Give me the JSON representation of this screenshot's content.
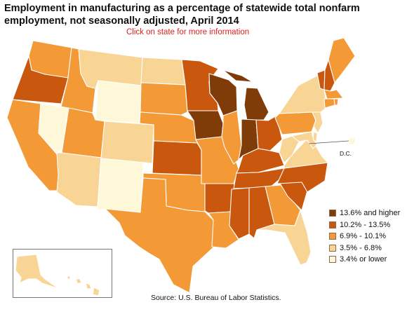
{
  "title": "Employment in manufacturing as a percentage of statewide total nonfarm\nemployment, not seasonally adjusted, April 2014",
  "subtitle": "Click on state for more information",
  "source": "Source:  U.S. Bureau of Labor Statistics.",
  "dc_label": "D.C.",
  "legend": [
    {
      "label": "13.6% and higher",
      "color": "#7f3b08"
    },
    {
      "label": "10.2% - 13.5%",
      "color": "#c9570e"
    },
    {
      "label": "6.9% - 10.1%",
      "color": "#f39935"
    },
    {
      "label": "3.5% - 6.8%",
      "color": "#f9d595"
    },
    {
      "label": "3.4% or lower",
      "color": "#fef8d8"
    }
  ],
  "states": [
    {
      "id": "WA",
      "class": 2
    },
    {
      "id": "OR",
      "class": 1
    },
    {
      "id": "CA",
      "class": 2
    },
    {
      "id": "NV",
      "class": 4
    },
    {
      "id": "ID",
      "class": 2
    },
    {
      "id": "MT",
      "class": 3
    },
    {
      "id": "WY",
      "class": 4
    },
    {
      "id": "UT",
      "class": 2
    },
    {
      "id": "AZ",
      "class": 3
    },
    {
      "id": "CO",
      "class": 3
    },
    {
      "id": "NM",
      "class": 4
    },
    {
      "id": "ND",
      "class": 3
    },
    {
      "id": "SD",
      "class": 2
    },
    {
      "id": "NE",
      "class": 2
    },
    {
      "id": "KS",
      "class": 1
    },
    {
      "id": "OK",
      "class": 2
    },
    {
      "id": "TX",
      "class": 2
    },
    {
      "id": "MN",
      "class": 1
    },
    {
      "id": "IA",
      "class": 0
    },
    {
      "id": "MO",
      "class": 2
    },
    {
      "id": "AR",
      "class": 1
    },
    {
      "id": "LA",
      "class": 2
    },
    {
      "id": "WI",
      "class": 0
    },
    {
      "id": "IL",
      "class": 2
    },
    {
      "id": "MI",
      "class": 0
    },
    {
      "id": "IN",
      "class": 0
    },
    {
      "id": "OH",
      "class": 1
    },
    {
      "id": "KY",
      "class": 1
    },
    {
      "id": "TN",
      "class": 1
    },
    {
      "id": "MS",
      "class": 1
    },
    {
      "id": "AL",
      "class": 1
    },
    {
      "id": "GA",
      "class": 2
    },
    {
      "id": "FL",
      "class": 3
    },
    {
      "id": "SC",
      "class": 1
    },
    {
      "id": "NC",
      "class": 1
    },
    {
      "id": "VA",
      "class": 3
    },
    {
      "id": "WV",
      "class": 3
    },
    {
      "id": "PA",
      "class": 2
    },
    {
      "id": "NY",
      "class": 3
    },
    {
      "id": "VT",
      "class": 1
    },
    {
      "id": "NH",
      "class": 1
    },
    {
      "id": "ME",
      "class": 2
    },
    {
      "id": "MA",
      "class": 2
    },
    {
      "id": "RI",
      "class": 2
    },
    {
      "id": "CT",
      "class": 2
    },
    {
      "id": "NJ",
      "class": 3
    },
    {
      "id": "DE",
      "class": 3
    },
    {
      "id": "MD",
      "class": 3
    },
    {
      "id": "DC",
      "class": 4
    },
    {
      "id": "AK",
      "class": 3
    },
    {
      "id": "HI",
      "class": 3
    }
  ]
}
